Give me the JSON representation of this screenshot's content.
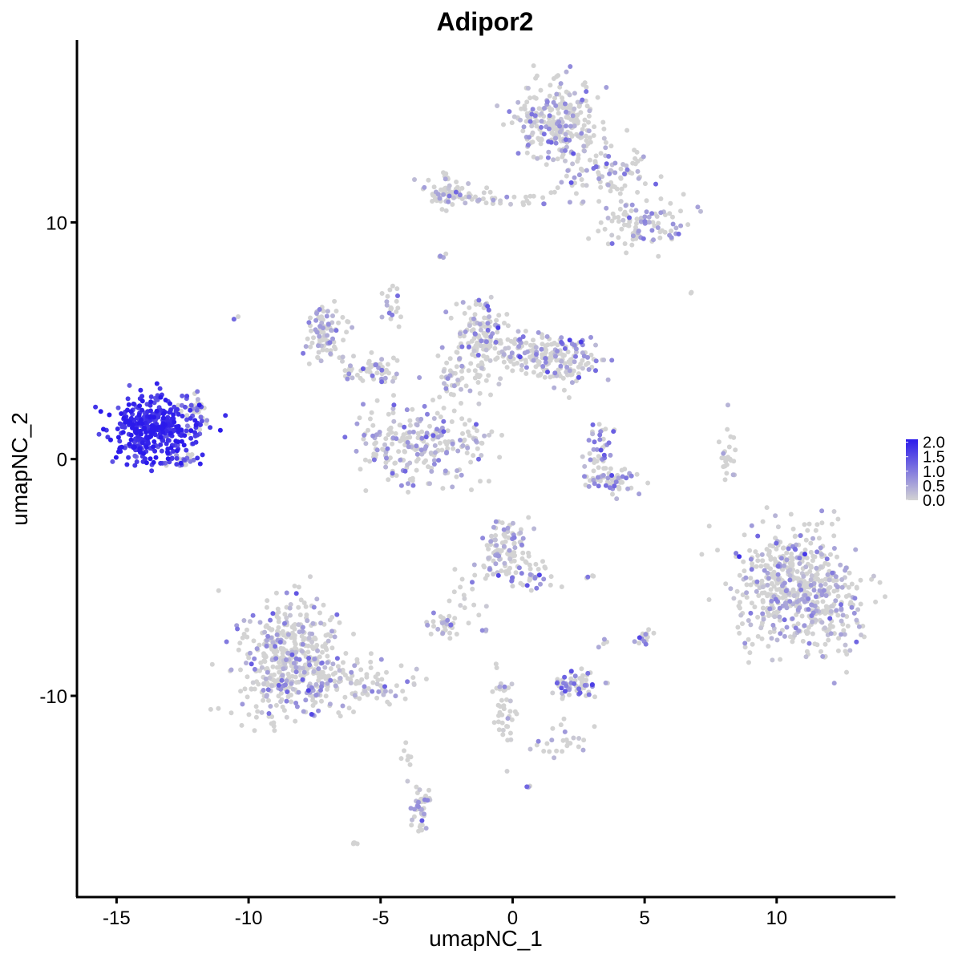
{
  "chart_data": {
    "type": "scatter",
    "title": "Adipor2",
    "xlabel": "umapNC_1",
    "ylabel": "umapNC_2",
    "xlim": [
      -16.5,
      14.5
    ],
    "ylim": [
      -18.5,
      17.7
    ],
    "x_ticks": [
      -15,
      -10,
      -5,
      0,
      5,
      10
    ],
    "x_tick_labels": [
      "-15",
      "-10",
      "-5",
      "0",
      "5",
      "10"
    ],
    "y_ticks": [
      -10,
      0,
      10
    ],
    "y_tick_labels": [
      "-10",
      "0",
      "10"
    ],
    "grid": false,
    "legend": {
      "placement": "right",
      "type": "colorbar",
      "labels": [
        "2.0",
        "1.5",
        "1.0",
        "0.5",
        "0.0"
      ],
      "values": [
        2.0,
        1.5,
        1.0,
        0.5,
        0.0
      ],
      "color_low": "#d3d3d3",
      "color_high": "#2b1aeb",
      "range": [
        0,
        2.1
      ]
    },
    "clusters": [
      {
        "center": [
          -13.6,
          1.2
        ],
        "spread": [
          0.85,
          0.7
        ],
        "n": 380,
        "mean_expression": 1.85
      },
      {
        "center": [
          -12.0,
          2.0
        ],
        "spread": [
          0.3,
          0.45
        ],
        "n": 40,
        "mean_expression": 1.2
      },
      {
        "center": [
          -12.5,
          0.0
        ],
        "spread": [
          0.3,
          0.15
        ],
        "n": 20,
        "mean_expression": 1.0
      },
      {
        "center": [
          1.8,
          14.2
        ],
        "spread": [
          0.8,
          0.9
        ],
        "n": 260,
        "mean_expression": 0.4
      },
      {
        "center": [
          3.5,
          12.0
        ],
        "spread": [
          0.9,
          0.6
        ],
        "n": 90,
        "mean_expression": 0.35
      },
      {
        "center": [
          4.8,
          10.0
        ],
        "spread": [
          0.8,
          0.6
        ],
        "n": 100,
        "mean_expression": 0.4
      },
      {
        "center": [
          -2.5,
          11.3
        ],
        "spread": [
          0.4,
          0.35
        ],
        "n": 60,
        "mean_expression": 0.3
      },
      {
        "center": [
          -0.5,
          11.0
        ],
        "spread": [
          1.2,
          0.15
        ],
        "n": 40,
        "mean_expression": 0.35
      },
      {
        "center": [
          -7.2,
          5.2
        ],
        "spread": [
          0.4,
          0.6
        ],
        "n": 90,
        "mean_expression": 0.5
      },
      {
        "center": [
          -5.2,
          3.8
        ],
        "spread": [
          0.6,
          0.3
        ],
        "n": 60,
        "mean_expression": 0.45
      },
      {
        "center": [
          -4.6,
          6.5
        ],
        "spread": [
          0.2,
          0.6
        ],
        "n": 20,
        "mean_expression": 0.5
      },
      {
        "center": [
          -3.5,
          0.6
        ],
        "spread": [
          1.1,
          0.8
        ],
        "n": 230,
        "mean_expression": 0.45
      },
      {
        "center": [
          -1.2,
          5.3
        ],
        "spread": [
          0.45,
          0.7
        ],
        "n": 110,
        "mean_expression": 0.55
      },
      {
        "center": [
          0.5,
          4.5
        ],
        "spread": [
          0.9,
          0.4
        ],
        "n": 100,
        "mean_expression": 0.4
      },
      {
        "center": [
          2.0,
          4.2
        ],
        "spread": [
          0.7,
          0.5
        ],
        "n": 120,
        "mean_expression": 0.5
      },
      {
        "center": [
          -2.0,
          3.5
        ],
        "spread": [
          0.6,
          0.6
        ],
        "n": 60,
        "mean_expression": 0.3
      },
      {
        "center": [
          -1.5,
          0.9
        ],
        "spread": [
          0.4,
          0.4
        ],
        "n": 20,
        "mean_expression": 0.3
      },
      {
        "center": [
          3.3,
          0.5
        ],
        "spread": [
          0.25,
          0.6
        ],
        "n": 40,
        "mean_expression": 0.8
      },
      {
        "center": [
          3.8,
          -0.9
        ],
        "spread": [
          0.5,
          0.25
        ],
        "n": 60,
        "mean_expression": 0.85
      },
      {
        "center": [
          8.2,
          0.3
        ],
        "spread": [
          0.2,
          0.6
        ],
        "n": 25,
        "mean_expression": 0.1
      },
      {
        "center": [
          10.8,
          -5.5
        ],
        "spread": [
          1.2,
          1.3
        ],
        "n": 600,
        "mean_expression": 0.3
      },
      {
        "center": [
          -0.4,
          -3.8
        ],
        "spread": [
          0.5,
          0.7
        ],
        "n": 110,
        "mean_expression": 0.5
      },
      {
        "center": [
          0.8,
          -4.8
        ],
        "spread": [
          0.4,
          0.4
        ],
        "n": 30,
        "mean_expression": 0.6
      },
      {
        "center": [
          -8.5,
          -8.5
        ],
        "spread": [
          1.0,
          1.3
        ],
        "n": 460,
        "mean_expression": 0.4
      },
      {
        "center": [
          -6.0,
          -9.5
        ],
        "spread": [
          1.1,
          0.5
        ],
        "n": 100,
        "mean_expression": 0.4
      },
      {
        "center": [
          -2.6,
          -7.0
        ],
        "spread": [
          0.35,
          0.25
        ],
        "n": 30,
        "mean_expression": 0.45
      },
      {
        "center": [
          -1.8,
          -6.0
        ],
        "spread": [
          0.25,
          0.5
        ],
        "n": 15,
        "mean_expression": 0.3
      },
      {
        "center": [
          2.4,
          -9.5
        ],
        "spread": [
          0.4,
          0.3
        ],
        "n": 60,
        "mean_expression": 0.9
      },
      {
        "center": [
          5.0,
          -7.5
        ],
        "spread": [
          0.15,
          0.25
        ],
        "n": 15,
        "mean_expression": 1.0
      },
      {
        "center": [
          -0.3,
          -10.7
        ],
        "spread": [
          0.2,
          0.9
        ],
        "n": 40,
        "mean_expression": 0.25
      },
      {
        "center": [
          1.8,
          -12.0
        ],
        "spread": [
          0.6,
          0.4
        ],
        "n": 25,
        "mean_expression": 0.3
      },
      {
        "center": [
          -3.5,
          -14.6
        ],
        "spread": [
          0.2,
          0.55
        ],
        "n": 45,
        "mean_expression": 0.5
      },
      {
        "center": [
          -4.0,
          -12.5
        ],
        "spread": [
          0.1,
          0.4
        ],
        "n": 8,
        "mean_expression": 0.1
      },
      {
        "center": [
          -2.7,
          8.5
        ],
        "spread": [
          0.1,
          0.1
        ],
        "n": 5,
        "mean_expression": 0.5
      },
      {
        "center": [
          -10.5,
          6.0
        ],
        "spread": [
          0.05,
          0.05
        ],
        "n": 3,
        "mean_expression": 0.6
      },
      {
        "center": [
          -6.0,
          -16.2
        ],
        "spread": [
          0.1,
          0.05
        ],
        "n": 4,
        "mean_expression": 0.5
      },
      {
        "center": [
          0.6,
          -13.8
        ],
        "spread": [
          0.05,
          0.05
        ],
        "n": 3,
        "mean_expression": 0.7
      },
      {
        "center": [
          2.9,
          -5.0
        ],
        "spread": [
          0.1,
          0.05
        ],
        "n": 4,
        "mean_expression": 0.8
      },
      {
        "center": [
          3.5,
          -7.7
        ],
        "spread": [
          0.1,
          0.1
        ],
        "n": 4,
        "mean_expression": 0.5
      },
      {
        "center": [
          -1.1,
          -7.3
        ],
        "spread": [
          0.05,
          0.05
        ],
        "n": 3,
        "mean_expression": 0.9
      },
      {
        "center": [
          6.8,
          7.0
        ],
        "spread": [
          0.05,
          0.05
        ],
        "n": 2,
        "mean_expression": 0.0
      }
    ]
  }
}
